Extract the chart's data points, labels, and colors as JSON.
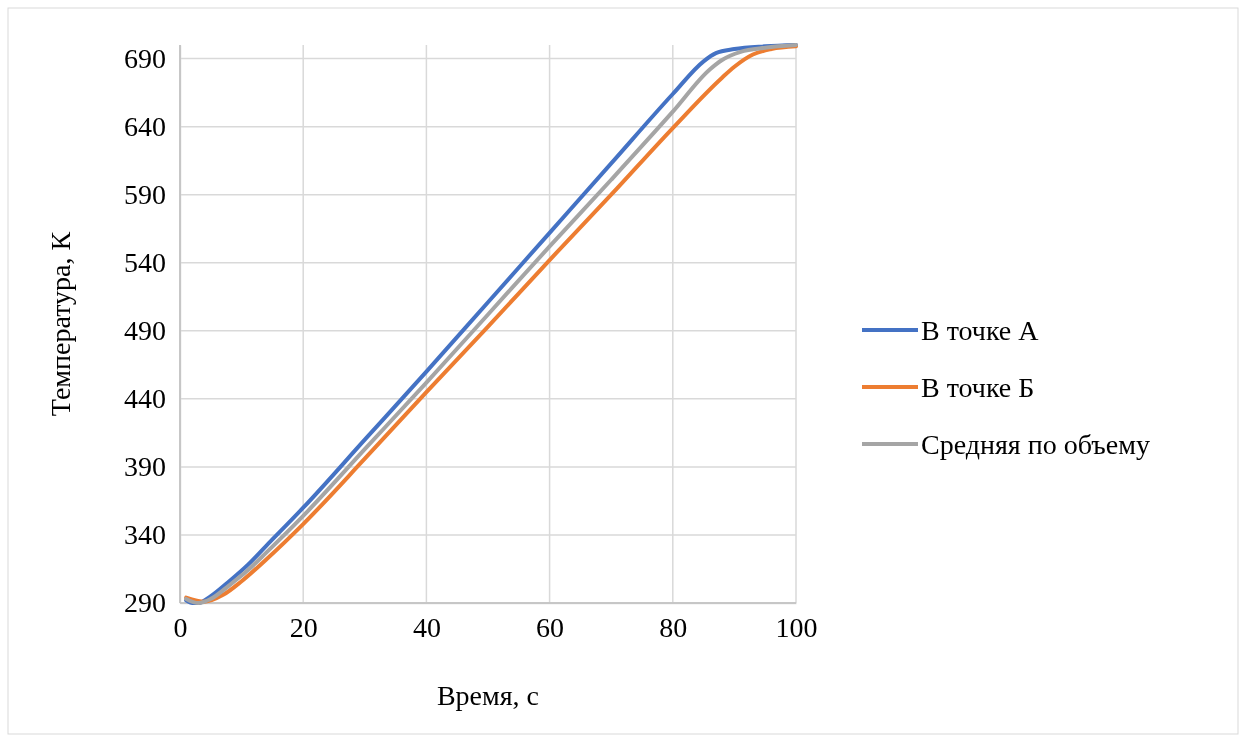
{
  "chart_data": {
    "type": "line",
    "xlabel": "Время, с",
    "ylabel": "Температура, К",
    "xlim": [
      0,
      100
    ],
    "xticks": [
      0,
      20,
      40,
      60,
      80,
      100
    ],
    "ylim": [
      290,
      700
    ],
    "yticks": [
      290,
      340,
      390,
      440,
      490,
      540,
      590,
      640,
      690
    ],
    "grid": true,
    "legend": "right",
    "marker": "none",
    "line_style": "solid",
    "series": [
      {
        "name": "В точке А",
        "color": "#4472c4",
        "x": [
          1,
          2,
          3,
          5,
          8,
          11,
          14,
          20,
          30,
          40,
          50,
          60,
          70,
          80,
          85,
          87,
          90,
          95,
          100
        ],
        "values": [
          292,
          290,
          290,
          295,
          306,
          318,
          332,
          360,
          410,
          460,
          511,
          562,
          613,
          664,
          688,
          694,
          697,
          699,
          700
        ]
      },
      {
        "name": "В точке Б",
        "color": "#ed7d31",
        "x": [
          1,
          4,
          7,
          10,
          14,
          20,
          30,
          40,
          50,
          60,
          70,
          80,
          88,
          90,
          93,
          96,
          100
        ],
        "values": [
          294,
          291,
          296,
          306,
          322,
          348,
          396,
          445,
          493,
          542,
          590,
          639,
          676,
          684,
          693,
          697,
          699
        ]
      },
      {
        "name": "Средняя по объему",
        "color": "#a5a5a5",
        "x": [
          1,
          3,
          5,
          8,
          11,
          14,
          20,
          30,
          40,
          50,
          60,
          70,
          80,
          86,
          88,
          91,
          95,
          100
        ],
        "values": [
          293,
          290,
          293,
          303,
          314,
          327,
          354,
          403,
          452,
          502,
          552,
          601,
          651,
          682,
          689,
          695,
          698,
          700
        ]
      }
    ]
  }
}
